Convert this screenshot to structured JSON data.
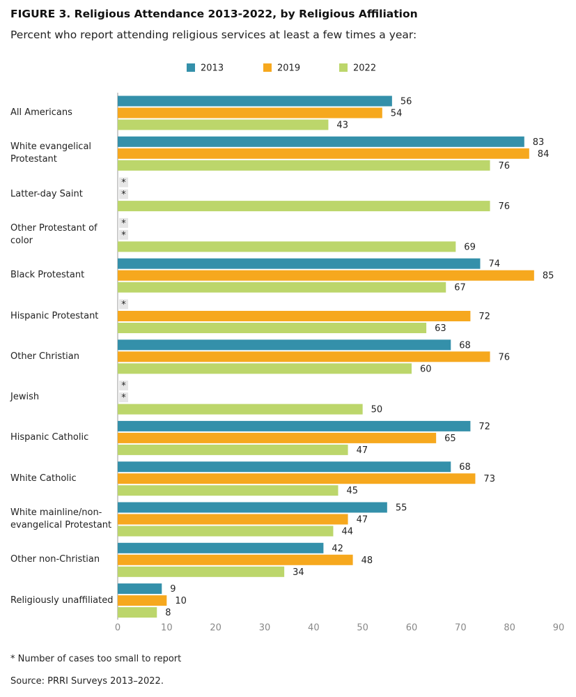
{
  "chart_data": {
    "type": "bar",
    "orientation": "horizontal",
    "title": "FIGURE 3.  Religious Attendance 2013-2022, by Religious Affiliation",
    "subtitle": "Percent who report attending religious services at least a few times a year:",
    "categories": [
      "All Americans",
      "White evangelical Protestant",
      "Latter-day Saint",
      "Other Protestant of color",
      "Black Protestant",
      "Hispanic Protestant",
      "Other Christian",
      "Jewish",
      "Hispanic Catholic",
      "White Catholic",
      "White mainline/non-evangelical Protestant",
      "Other non-Christian",
      "Religiously unaffiliated"
    ],
    "series": [
      {
        "name": "2013",
        "color": "#3490aa",
        "values": [
          56,
          83,
          null,
          null,
          74,
          null,
          68,
          null,
          72,
          68,
          55,
          42,
          9
        ],
        "value_labels": [
          "56",
          "83",
          "*",
          "*",
          "74",
          "*",
          "68",
          "*",
          "72",
          "68",
          "55",
          "42",
          "9"
        ]
      },
      {
        "name": "2019",
        "color": "#f6a81e",
        "values": [
          54,
          84,
          null,
          null,
          85,
          72,
          76,
          null,
          65,
          73,
          47,
          48,
          10
        ],
        "value_labels": [
          "54",
          "84",
          "*",
          "*",
          "85",
          "72",
          "76",
          "*",
          "65",
          "73",
          "47",
          "48",
          "10"
        ]
      },
      {
        "name": "2022",
        "color": "#bcd66b",
        "values": [
          43,
          76,
          76,
          69,
          67,
          63,
          60,
          50,
          47,
          45,
          44,
          34,
          8
        ],
        "value_labels": [
          "43",
          "76",
          "76",
          "69",
          "67",
          "63",
          "60",
          "50",
          "47",
          "45",
          "44",
          "34",
          "8"
        ]
      }
    ],
    "xlim": [
      0,
      90
    ],
    "xticks": [
      0,
      10,
      20,
      30,
      40,
      50,
      60,
      70,
      80,
      90
    ],
    "legend": "top",
    "footnote": "* Number of cases too small to report",
    "source": "Source: PRRI Surveys 2013–2022."
  }
}
